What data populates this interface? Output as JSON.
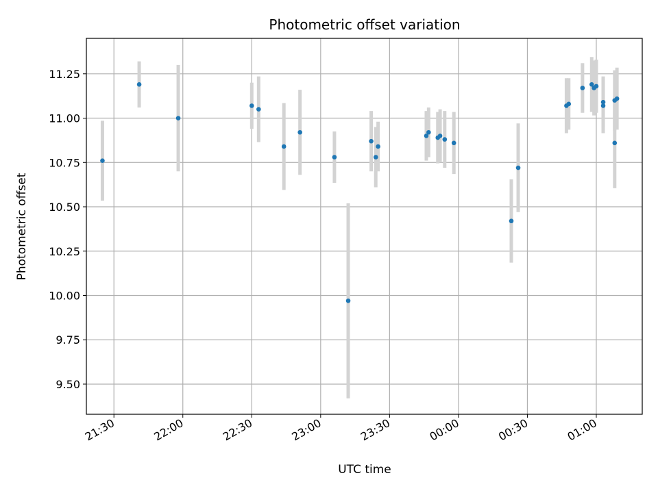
{
  "chart_data": {
    "type": "scatter",
    "title": "Photometric offset variation",
    "xlabel": "UTC time",
    "ylabel": "Photometric offset",
    "grid": true,
    "xlim": [
      "21:18",
      "01:20"
    ],
    "ylim": [
      9.33,
      11.45
    ],
    "xticks": [
      "21:30",
      "22:00",
      "22:30",
      "23:00",
      "23:30",
      "00:00",
      "00:30",
      "01:00"
    ],
    "yticks": [
      "9.50",
      "9.75",
      "10.00",
      "10.25",
      "10.50",
      "10.75",
      "11.00",
      "11.25"
    ],
    "colors": {
      "point": "#1f77b4",
      "errorbar": "#d3d3d3",
      "grid": "#b0b0b0"
    },
    "points": [
      {
        "x": "21:25",
        "y": 10.76,
        "err": 0.225
      },
      {
        "x": "21:41",
        "y": 11.19,
        "err": 0.13
      },
      {
        "x": "21:58",
        "y": 11.0,
        "err": 0.3
      },
      {
        "x": "22:30",
        "y": 11.07,
        "err": 0.13
      },
      {
        "x": "22:33",
        "y": 11.05,
        "err": 0.185
      },
      {
        "x": "22:44",
        "y": 10.84,
        "err": 0.245
      },
      {
        "x": "22:51",
        "y": 10.92,
        "err": 0.24
      },
      {
        "x": "23:06",
        "y": 10.78,
        "err": 0.145
      },
      {
        "x": "23:12",
        "y": 9.97,
        "err": 0.55
      },
      {
        "x": "23:22",
        "y": 10.87,
        "err": 0.17
      },
      {
        "x": "23:24",
        "y": 10.78,
        "err": 0.17
      },
      {
        "x": "23:25",
        "y": 10.84,
        "err": 0.14
      },
      {
        "x": "23:46",
        "y": 10.9,
        "err": 0.14
      },
      {
        "x": "23:47",
        "y": 10.92,
        "err": 0.14
      },
      {
        "x": "23:51",
        "y": 10.89,
        "err": 0.145
      },
      {
        "x": "23:52",
        "y": 10.9,
        "err": 0.15
      },
      {
        "x": "23:54",
        "y": 10.88,
        "err": 0.16
      },
      {
        "x": "23:58",
        "y": 10.86,
        "err": 0.175
      },
      {
        "x": "00:23",
        "y": 10.42,
        "err": 0.235
      },
      {
        "x": "00:26",
        "y": 10.72,
        "err": 0.25
      },
      {
        "x": "00:47",
        "y": 11.07,
        "err": 0.155
      },
      {
        "x": "00:48",
        "y": 11.08,
        "err": 0.145
      },
      {
        "x": "00:54",
        "y": 11.17,
        "err": 0.14
      },
      {
        "x": "00:58",
        "y": 11.19,
        "err": 0.155
      },
      {
        "x": "00:59",
        "y": 11.17,
        "err": 0.155
      },
      {
        "x": "01:00",
        "y": 11.18,
        "err": 0.15
      },
      {
        "x": "01:03",
        "y": 11.07,
        "err": 0.155
      },
      {
        "x": "01:03",
        "y": 11.09,
        "err": 0.145
      },
      {
        "x": "01:08",
        "y": 10.86,
        "err": 0.255
      },
      {
        "x": "01:08",
        "y": 11.1,
        "err": 0.17
      },
      {
        "x": "01:09",
        "y": 11.11,
        "err": 0.175
      }
    ]
  }
}
